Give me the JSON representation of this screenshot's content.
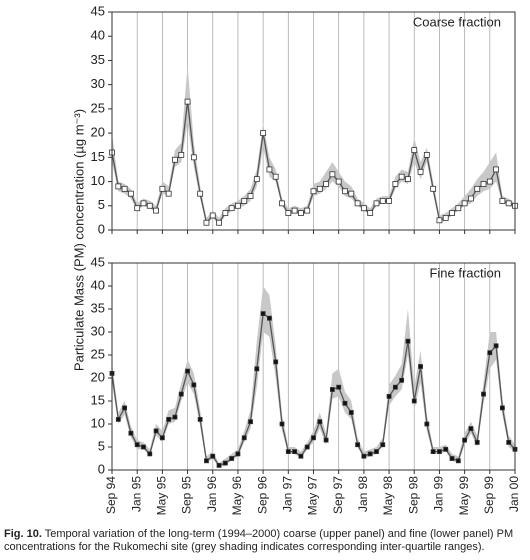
{
  "chart_data": [
    {
      "type": "line",
      "annotation": "Coarse fraction",
      "color": "#555555",
      "band_color": "#c8c8c8",
      "marker": "open-square",
      "ylim": [
        0,
        45
      ],
      "yticks": [
        0,
        5,
        10,
        15,
        20,
        25,
        30,
        35,
        40,
        45
      ],
      "xgrid": true,
      "values": [
        16,
        9,
        8.5,
        7.5,
        4.5,
        5.5,
        5,
        4,
        8.5,
        7.5,
        14.5,
        15.5,
        26.5,
        15,
        7.5,
        1.5,
        3,
        1.5,
        3.5,
        4.5,
        5,
        6,
        7,
        10.5,
        20,
        12.5,
        11,
        5.5,
        3.5,
        4,
        3.5,
        4,
        8,
        8.5,
        9.5,
        11.5,
        10,
        8,
        7.5,
        5.5,
        4.5,
        3.5,
        5.5,
        6,
        6,
        9.5,
        11,
        10.5,
        16.5,
        12,
        15.5,
        8.5,
        2,
        2.5,
        3.5,
        4.5,
        5.5,
        6.5,
        8.5,
        9.5,
        10,
        12.5,
        6,
        5.5,
        5
      ],
      "band_low": [
        14,
        8,
        7.5,
        6.5,
        4,
        5,
        4.5,
        3.5,
        7.5,
        7,
        13,
        14,
        22,
        13,
        6.5,
        1,
        2.5,
        1,
        3,
        4,
        4.5,
        5,
        6,
        9,
        17,
        11,
        10,
        5,
        3,
        3.5,
        3,
        3.5,
        7,
        7.5,
        8.5,
        10,
        9,
        7,
        6.5,
        5,
        4,
        3,
        5,
        5.5,
        5.5,
        8.5,
        10,
        9.5,
        14,
        10.5,
        14,
        7.5,
        1.5,
        2,
        3,
        4,
        5,
        5.5,
        7,
        8,
        8.5,
        10,
        5.5,
        5,
        4.5
      ],
      "band_high": [
        20,
        10,
        9.5,
        8.5,
        5.5,
        6.5,
        6,
        5,
        10,
        9,
        16.5,
        18,
        34,
        18,
        9,
        2.5,
        4,
        2.5,
        4.5,
        5.5,
        6,
        7,
        8.5,
        12.5,
        22,
        15,
        12.5,
        6.5,
        4.5,
        5,
        4.5,
        5,
        9.5,
        10,
        12,
        14,
        12,
        10,
        9,
        6.5,
        5.5,
        4.5,
        6.5,
        7,
        7,
        11,
        12.5,
        12,
        19,
        14,
        17,
        10,
        3,
        3.5,
        4.5,
        5.5,
        7,
        8.5,
        10.5,
        12,
        14,
        16,
        7,
        6.5,
        5.5
      ]
    },
    {
      "type": "line",
      "annotation": "Fine fraction",
      "color": "#555555",
      "band_color": "#c8c8c8",
      "marker": "filled-square",
      "ylim": [
        0,
        45
      ],
      "yticks": [
        0,
        5,
        10,
        15,
        20,
        25,
        30,
        35,
        40,
        45
      ],
      "xgrid": true,
      "categories": [
        "Sep 94",
        null,
        null,
        null,
        "Jan 95",
        null,
        null,
        null,
        "May 95",
        null,
        null,
        null,
        "Sep 95",
        null,
        null,
        null,
        "Jan 96",
        null,
        null,
        null,
        "May 96",
        null,
        null,
        null,
        "Sep 96",
        null,
        null,
        null,
        "Jan 97",
        null,
        null,
        null,
        "May 97",
        null,
        null,
        null,
        "Sep 97",
        null,
        null,
        null,
        "Jan 98",
        null,
        null,
        null,
        "May 98",
        null,
        null,
        null,
        "Sep 98",
        null,
        null,
        null,
        "Jan 99",
        null,
        null,
        null,
        "May 99",
        null,
        null,
        null,
        "Sep 99",
        null,
        null,
        null,
        "Jan 00"
      ],
      "values": [
        21,
        11,
        13.5,
        8,
        5.5,
        5,
        3.5,
        8.5,
        7,
        11,
        11.5,
        16.5,
        21.5,
        18.5,
        11,
        2,
        3,
        1,
        1.5,
        2.5,
        3.5,
        7,
        10.5,
        22,
        34,
        33,
        23.5,
        10,
        4,
        4,
        3,
        5,
        7,
        10.5,
        6.5,
        17.5,
        18,
        14.5,
        12.5,
        5.5,
        3,
        3.5,
        4,
        5.5,
        16,
        18,
        19.5,
        28,
        15,
        22.5,
        10,
        4,
        4,
        4.5,
        2.5,
        2,
        6.5,
        9,
        6,
        16.5,
        25.5,
        27,
        13.5,
        6,
        4.5
      ],
      "band_low": [
        19,
        10,
        12,
        7,
        4.5,
        4.5,
        3,
        7.5,
        6,
        10,
        10.5,
        15,
        19,
        16.5,
        9.5,
        1.5,
        2.5,
        0.5,
        1,
        2,
        3,
        6,
        9,
        18,
        30,
        29,
        20,
        8.5,
        3.5,
        3.5,
        2.5,
        4.5,
        6,
        9,
        5.5,
        15.5,
        16,
        12.5,
        11,
        5,
        2.5,
        3,
        3.5,
        5,
        14,
        16,
        17.5,
        25,
        13,
        19,
        8.5,
        3.5,
        3.5,
        4,
        2,
        1.5,
        5.5,
        8,
        5,
        14.5,
        22,
        24,
        12,
        5,
        4
      ],
      "band_high": [
        23,
        12.5,
        15,
        9.5,
        6.5,
        6,
        4.5,
        10,
        8.5,
        13,
        13.5,
        19,
        24,
        21,
        13,
        3,
        4,
        1.5,
        2.5,
        3.5,
        4.5,
        8.5,
        13,
        28,
        40,
        38,
        27,
        12,
        5,
        5,
        4,
        6,
        8.5,
        12.5,
        8,
        21,
        22,
        17,
        15,
        7,
        4,
        4.5,
        5,
        7,
        18.5,
        20.5,
        23,
        35,
        18,
        26,
        12,
        5,
        5,
        5.5,
        3.5,
        3,
        8,
        10.5,
        7.5,
        19,
        30,
        30,
        15.5,
        7.5,
        5.5
      ]
    }
  ],
  "ylabel": "Particulate Mass (PM) concentration (µg m⁻³)",
  "caption": {
    "label": "Fig. 10.",
    "text": "Temporal variation of the long-term (1994–2000) coarse (upper panel) and fine (lower panel) PM concentrations for the Rukomechi site (grey shading indicates corresponding inter-quartile ranges)."
  }
}
